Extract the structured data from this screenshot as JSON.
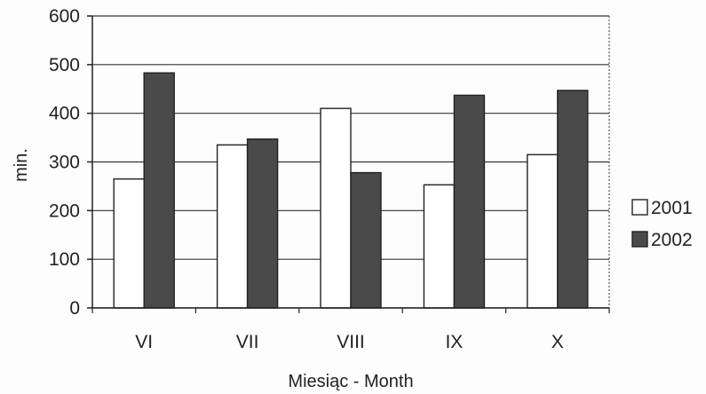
{
  "chart_data": {
    "type": "bar",
    "title": "",
    "xlabel": "Miesiąc - Month",
    "ylabel": "min.",
    "ylim": [
      0,
      600
    ],
    "yticks": [
      0,
      100,
      200,
      300,
      400,
      500,
      600
    ],
    "grid": true,
    "legend_position": "right",
    "categories": [
      "VI",
      "VII",
      "VIII",
      "IX",
      "X"
    ],
    "series": [
      {
        "name": "2001",
        "values": [
          265,
          335,
          410,
          253,
          315
        ],
        "color": "#ffffff"
      },
      {
        "name": "2002",
        "values": [
          483,
          347,
          278,
          437,
          447
        ],
        "color": "#4a4a4a"
      }
    ]
  }
}
